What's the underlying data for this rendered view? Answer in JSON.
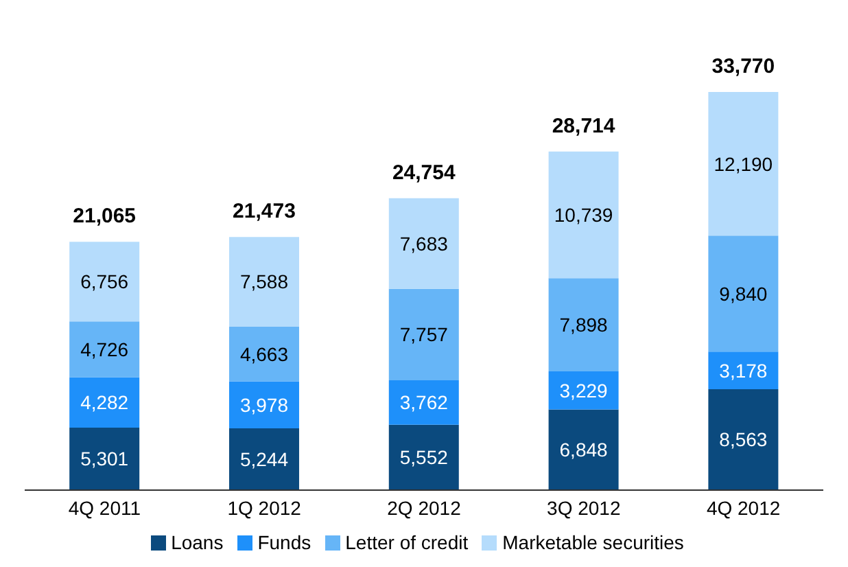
{
  "chart_data": {
    "type": "bar",
    "stacked": true,
    "categories": [
      "4Q 2011",
      "1Q 2012",
      "2Q 2012",
      "3Q 2012",
      "4Q 2012"
    ],
    "series": [
      {
        "name": "Loans",
        "color": "#0b4a7e",
        "values": [
          5301,
          5244,
          5552,
          6848,
          8563
        ],
        "value_labels": [
          "5,301",
          "5,244",
          "5,552",
          "6,848",
          "8,563"
        ]
      },
      {
        "name": "Funds",
        "color": "#1e90fa",
        "values": [
          4282,
          3978,
          3762,
          3229,
          3178
        ],
        "value_labels": [
          "4,282",
          "3,978",
          "3,762",
          "3,229",
          "3,178"
        ]
      },
      {
        "name": "Letter of credit",
        "color": "#66b5f7",
        "values": [
          4726,
          4663,
          7757,
          7898,
          9840
        ],
        "value_labels": [
          "4,726",
          "4,663",
          "7,757",
          "7,898",
          "9,840"
        ]
      },
      {
        "name": "Marketable securities",
        "color": "#b5dcfc",
        "values": [
          6756,
          7588,
          7683,
          10739,
          12190
        ],
        "value_labels": [
          "6,756",
          "7,588",
          "7,683",
          "10,739",
          "12,190"
        ]
      }
    ],
    "totals": [
      "21,065",
      "21,473",
      "24,754",
      "28,714",
      "33,770"
    ],
    "legend": "bottom"
  }
}
